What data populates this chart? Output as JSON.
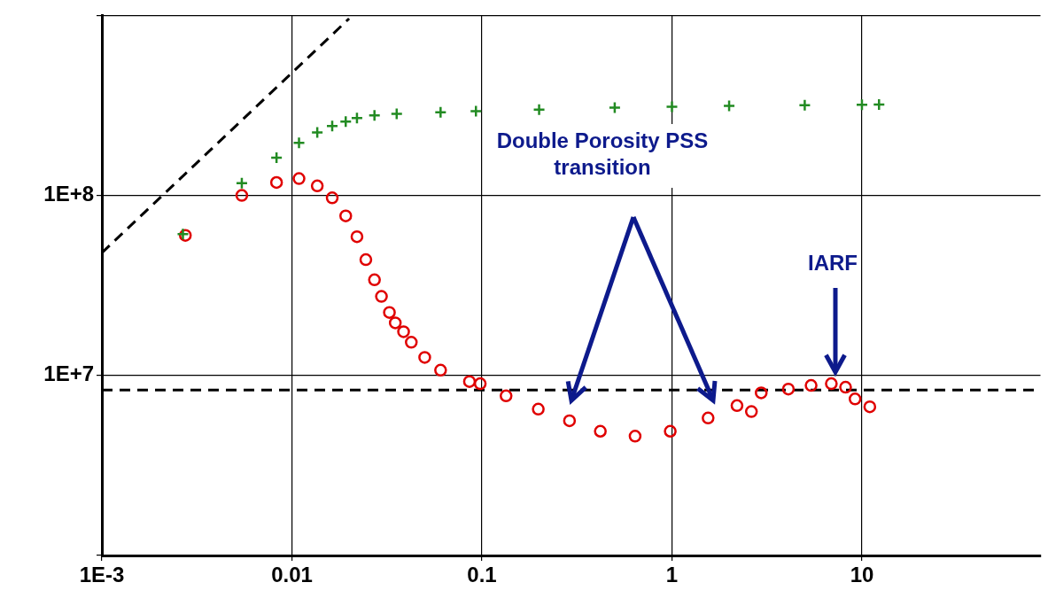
{
  "chart_data": {
    "type": "scatter",
    "log": "xy",
    "xlim": [
      0.001,
      87
    ],
    "ylim": [
      1000000,
      1000000000
    ],
    "xticks": [
      {
        "value": 0.001,
        "label": "1E-3"
      },
      0.01,
      0.1,
      1,
      10
    ],
    "yticks": [
      {
        "value": 1000000,
        "label": null
      },
      {
        "value": 10000000,
        "label": "1E+7"
      },
      {
        "value": 100000000,
        "label": "1E+8"
      },
      {
        "value": 1000000000,
        "label": null
      }
    ],
    "grid": true,
    "legend": false,
    "annotations": [
      "Double Porosity PSS transition",
      "IARF"
    ],
    "ref_lines": [
      {
        "axis": "y",
        "value": 8300000,
        "color": "#000000",
        "line_style": "dashed"
      }
    ],
    "series": [
      {
        "type": "line",
        "color": "#000000",
        "line_style": "dashed",
        "marker": "none",
        "x": [
          0.001,
          0.02
        ],
        "values": [
          48000000,
          960000000
        ]
      },
      {
        "type": "scatter",
        "color": "#228b22",
        "marker": "cross",
        "x": [
          0.00267,
          0.00545,
          0.0083,
          0.0109,
          0.0136,
          0.0163,
          0.0192,
          0.022,
          0.0272,
          0.0356,
          0.0606,
          0.093,
          0.2,
          0.5,
          1,
          2,
          5,
          10,
          12.3
        ],
        "values": [
          61000000,
          117000000,
          162000000,
          196000000,
          224000000,
          243000000,
          257000000,
          269000000,
          278000000,
          284000000,
          290000000,
          294000000,
          300000000,
          307000000,
          311000000,
          314000000,
          317000000,
          319000000,
          320000000
        ]
      },
      {
        "type": "scatter",
        "color": "#e00000",
        "marker": "circle",
        "x": [
          0.00275,
          0.00545,
          0.0083,
          0.0109,
          0.0136,
          0.0163,
          0.0192,
          0.022,
          0.0245,
          0.0272,
          0.0296,
          0.0326,
          0.035,
          0.0387,
          0.0425,
          0.05,
          0.0606,
          0.086,
          0.098,
          0.134,
          0.198,
          0.289,
          0.42,
          0.64,
          0.98,
          1.55,
          2.2,
          2.62,
          2.95,
          4.1,
          5.4,
          6.9,
          8.2,
          9.2,
          11.0
        ],
        "values": [
          60000000,
          100000000,
          118000000,
          124000000,
          113000000,
          97000000,
          77000000,
          59000000,
          44000000,
          34000000,
          27500000,
          22400000,
          19600000,
          17500000,
          15300000,
          12600000,
          10700000,
          9250000,
          9000000,
          7700000,
          6500000,
          5600000,
          4900000,
          4600000,
          4900000,
          5800000,
          6800000,
          6300000,
          8000000,
          8400000,
          8800000,
          9000000,
          8600000,
          7400000,
          6700000
        ]
      }
    ]
  }
}
